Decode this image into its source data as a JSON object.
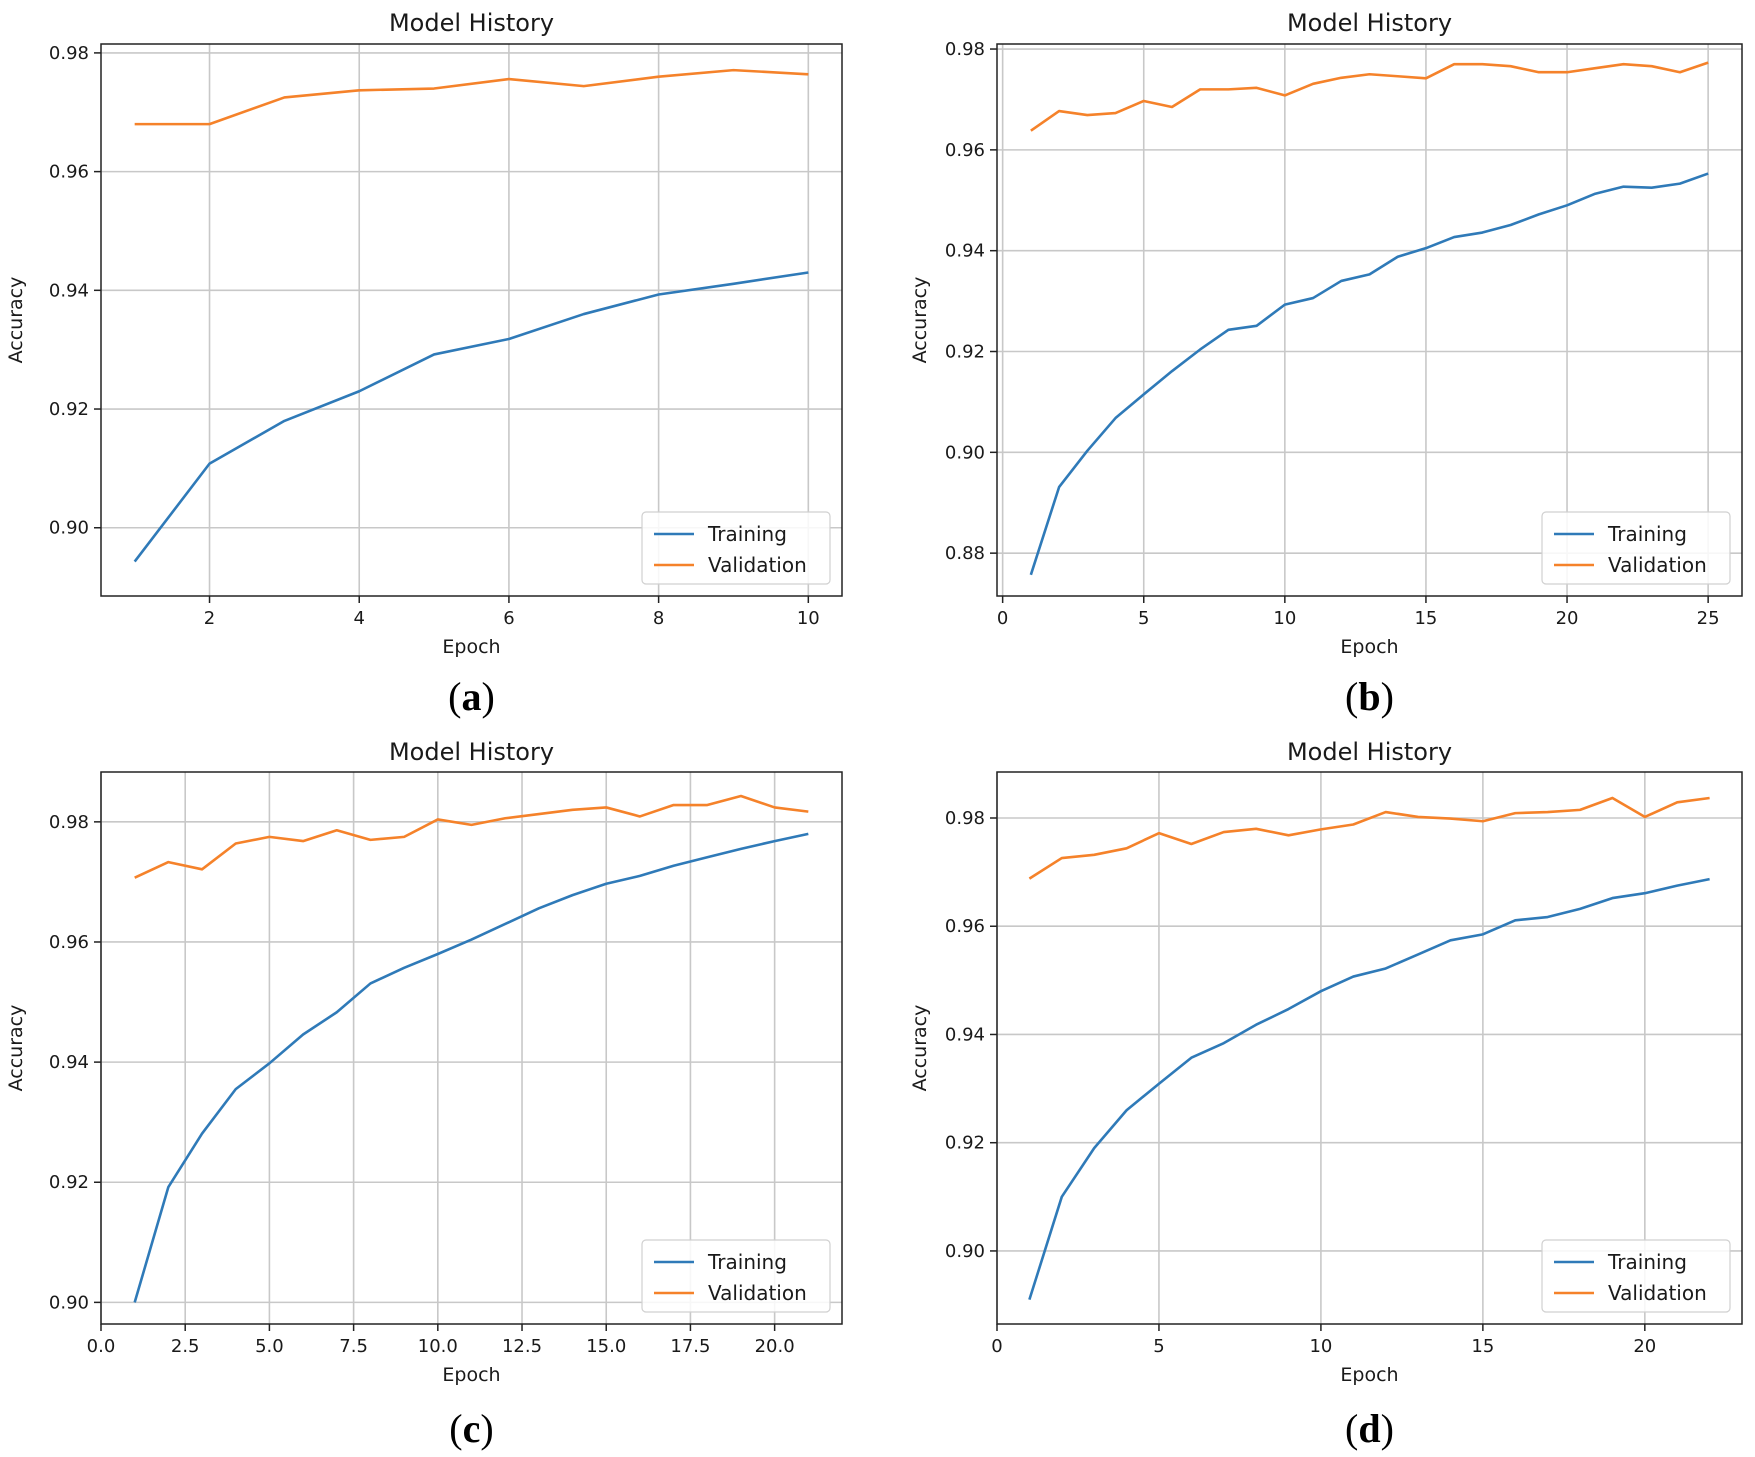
{
  "colors": {
    "training": "#2f7ab8",
    "validation": "#f5822a"
  },
  "chart_data": [
    {
      "type": "line",
      "panel_label": "a",
      "title": "Model History",
      "xlabel": "Epoch",
      "ylabel": "Accuracy",
      "xlim": [
        0.55,
        10.45
      ],
      "ylim": [
        0.8885,
        0.9815
      ],
      "xticks": [
        2,
        4,
        6,
        8,
        10
      ],
      "xtick_labels": [
        "2",
        "4",
        "6",
        "8",
        "10"
      ],
      "yticks": [
        0.9,
        0.92,
        0.94,
        0.96,
        0.98
      ],
      "ytick_labels": [
        "0.90",
        "0.92",
        "0.94",
        "0.96",
        "0.98"
      ],
      "grid": true,
      "legend": "lower right",
      "x": [
        1,
        2,
        3,
        4,
        5,
        6,
        7,
        8,
        9,
        10
      ],
      "series": [
        {
          "name": "Training",
          "values": [
            0.8943,
            0.9108,
            0.918,
            0.923,
            0.9292,
            0.9318,
            0.936,
            0.9393,
            0.9411,
            0.943
          ]
        },
        {
          "name": "Validation",
          "values": [
            0.968,
            0.968,
            0.9725,
            0.9737,
            0.974,
            0.9756,
            0.9744,
            0.976,
            0.9771,
            0.9764
          ]
        }
      ]
    },
    {
      "type": "line",
      "panel_label": "b",
      "title": "Model History",
      "xlabel": "Epoch",
      "ylabel": "Accuracy",
      "xlim": [
        -0.2,
        26.2
      ],
      "ylim": [
        0.8715,
        0.981
      ],
      "xticks": [
        0,
        5,
        10,
        15,
        20,
        25
      ],
      "xtick_labels": [
        "0",
        "5",
        "10",
        "15",
        "20",
        "25"
      ],
      "yticks": [
        0.88,
        0.9,
        0.92,
        0.94,
        0.96,
        0.98
      ],
      "ytick_labels": [
        "0.88",
        "0.90",
        "0.92",
        "0.94",
        "0.96",
        "0.98"
      ],
      "grid": true,
      "legend": "lower right",
      "x": [
        1,
        2,
        3,
        4,
        5,
        6,
        7,
        8,
        9,
        10,
        11,
        12,
        13,
        14,
        15,
        16,
        17,
        18,
        19,
        20,
        21,
        22,
        23,
        24,
        25
      ],
      "series": [
        {
          "name": "Training",
          "values": [
            0.8757,
            0.8931,
            0.9003,
            0.9068,
            0.9115,
            0.9161,
            0.9204,
            0.9243,
            0.9251,
            0.9293,
            0.9306,
            0.934,
            0.9353,
            0.9388,
            0.9405,
            0.9427,
            0.9436,
            0.9451,
            0.9472,
            0.949,
            0.9513,
            0.9527,
            0.9525,
            0.9533,
            0.9553
          ]
        },
        {
          "name": "Validation",
          "values": [
            0.9638,
            0.9677,
            0.9669,
            0.9673,
            0.9697,
            0.9685,
            0.972,
            0.972,
            0.9723,
            0.9708,
            0.9731,
            0.9743,
            0.975,
            0.9746,
            0.9742,
            0.977,
            0.977,
            0.9766,
            0.9754,
            0.9754,
            0.9762,
            0.977,
            0.9766,
            0.9754,
            0.9773
          ]
        }
      ]
    },
    {
      "type": "line",
      "panel_label": "c",
      "title": "Model History",
      "xlabel": "Epoch",
      "ylabel": "Accuracy",
      "xlim": [
        0.0,
        22.0
      ],
      "ylim": [
        0.8964,
        0.9883
      ],
      "xticks": [
        0.0,
        2.5,
        5.0,
        7.5,
        10.0,
        12.5,
        15.0,
        17.5,
        20.0
      ],
      "xtick_labels": [
        "0.0",
        "2.5",
        "5.0",
        "7.5",
        "10.0",
        "12.5",
        "15.0",
        "17.5",
        "20.0"
      ],
      "yticks": [
        0.9,
        0.92,
        0.94,
        0.96,
        0.98
      ],
      "ytick_labels": [
        "0.90",
        "0.92",
        "0.94",
        "0.96",
        "0.98"
      ],
      "grid": true,
      "legend": "lower right",
      "x": [
        1,
        2,
        3,
        4,
        5,
        6,
        7,
        8,
        9,
        10,
        11,
        12,
        13,
        14,
        15,
        16,
        17,
        18,
        19,
        20,
        21
      ],
      "series": [
        {
          "name": "Training",
          "values": [
            0.9,
            0.9192,
            0.9281,
            0.9355,
            0.9398,
            0.9446,
            0.9483,
            0.9531,
            0.9557,
            0.958,
            0.9604,
            0.963,
            0.9656,
            0.9678,
            0.9697,
            0.971,
            0.9727,
            0.9741,
            0.9755,
            0.9768,
            0.978
          ]
        },
        {
          "name": "Validation",
          "values": [
            0.9707,
            0.9733,
            0.9721,
            0.9764,
            0.9775,
            0.9768,
            0.9786,
            0.977,
            0.9775,
            0.9804,
            0.9795,
            0.9806,
            0.9813,
            0.982,
            0.9824,
            0.9809,
            0.9828,
            0.9828,
            0.9843,
            0.9824,
            0.9817
          ]
        }
      ]
    },
    {
      "type": "line",
      "panel_label": "d",
      "title": "Model History",
      "xlabel": "Epoch",
      "ylabel": "Accuracy",
      "xlim": [
        0.0,
        23.0
      ],
      "ylim": [
        0.8865,
        0.9885
      ],
      "xticks": [
        0,
        5,
        10,
        15,
        20
      ],
      "xtick_labels": [
        "0",
        "5",
        "10",
        "15",
        "20"
      ],
      "yticks": [
        0.9,
        0.92,
        0.94,
        0.96,
        0.98
      ],
      "ytick_labels": [
        "0.90",
        "0.92",
        "0.94",
        "0.96",
        "0.98"
      ],
      "grid": true,
      "legend": "lower right",
      "x": [
        1,
        2,
        3,
        4,
        5,
        6,
        7,
        8,
        9,
        10,
        11,
        12,
        13,
        14,
        15,
        16,
        17,
        18,
        19,
        20,
        21,
        22
      ],
      "series": [
        {
          "name": "Training",
          "values": [
            0.891,
            0.91,
            0.919,
            0.926,
            0.9309,
            0.9357,
            0.9384,
            0.9418,
            0.9447,
            0.948,
            0.9507,
            0.9522,
            0.9548,
            0.9574,
            0.9585,
            0.9611,
            0.9617,
            0.9632,
            0.9652,
            0.9661,
            0.9675,
            0.9687
          ]
        },
        {
          "name": "Validation",
          "values": [
            0.9688,
            0.9726,
            0.9732,
            0.9744,
            0.9772,
            0.9752,
            0.9774,
            0.978,
            0.9768,
            0.9779,
            0.9788,
            0.9811,
            0.9802,
            0.9799,
            0.9794,
            0.9809,
            0.9811,
            0.9815,
            0.9837,
            0.9802,
            0.9829,
            0.9837
          ]
        }
      ]
    }
  ]
}
